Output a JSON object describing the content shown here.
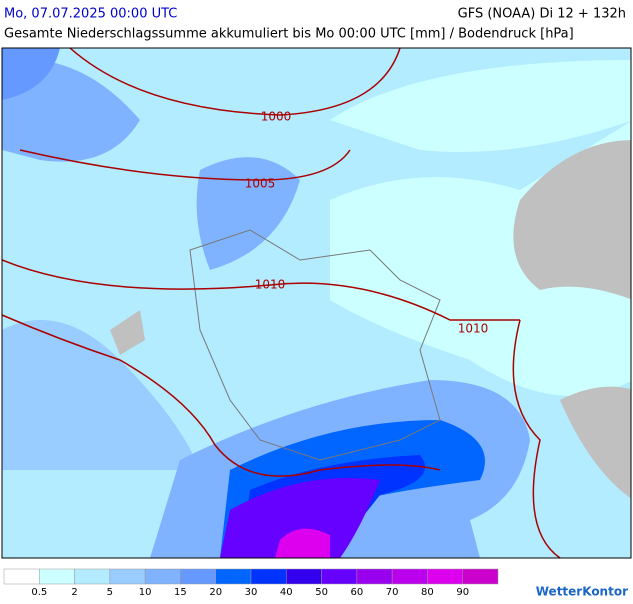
{
  "header": {
    "valid_time": "Mo, 07.07.2025 00:00 UTC",
    "model_run": "GFS (NOAA) Di 12 + 132h",
    "subtitle": "Gesamte Niederschlagssumme akkumuliert bis Mo 00:00 UTC [mm] / Bodendruck [hPa]"
  },
  "isobars": [
    1000,
    1005,
    1010,
    1010
  ],
  "legend": {
    "colors": [
      "#ffffff",
      "#ccffff",
      "#b3ecff",
      "#99ccff",
      "#80b3ff",
      "#6699ff",
      "#0066ff",
      "#0033ff",
      "#3300ee",
      "#6600ff",
      "#9900ee",
      "#bb00ee",
      "#dd00ee",
      "#cc00cc"
    ],
    "labels": [
      0.5,
      2,
      5,
      10,
      15,
      20,
      30,
      40,
      50,
      60,
      70,
      80,
      90
    ]
  },
  "logo": "WetterKontor"
}
